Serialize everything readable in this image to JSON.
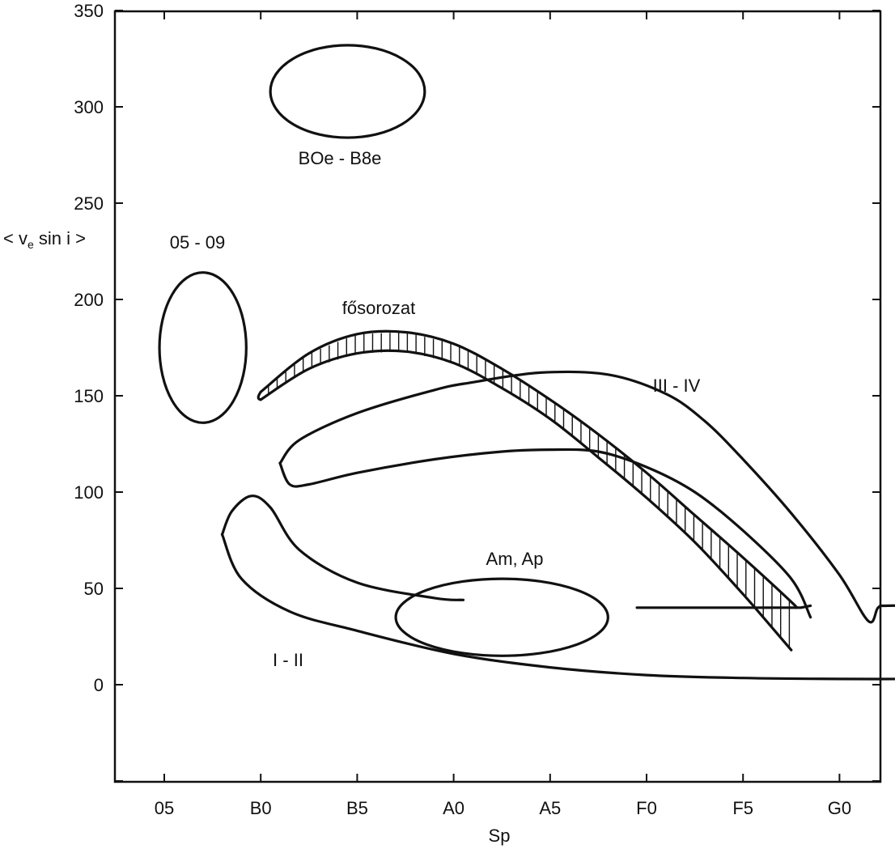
{
  "chart_data": {
    "type": "scatter",
    "xlabel": "Sp",
    "ylabel_main": "< v",
    "ylabel_sub": "e",
    "ylabel_rest": " sin i >",
    "x_ticks": [
      "05",
      "B0",
      "B5",
      "A0",
      "A5",
      "F0",
      "F5",
      "G0"
    ],
    "y_ticks": [
      0,
      50,
      100,
      150,
      200,
      250,
      300,
      350
    ],
    "ylim": [
      -50,
      350
    ],
    "grid": false,
    "regions": [
      {
        "label": "BOe - B8e",
        "shape": "ellipse",
        "center": [
          1.9,
          308
        ],
        "radius": [
          0.8,
          24
        ]
      },
      {
        "label": "05 - 09",
        "shape": "ellipse",
        "center": [
          0.4,
          175
        ],
        "radius": [
          0.45,
          39
        ]
      },
      {
        "label": "fősorozat",
        "shape": "band",
        "upper": [
          [
            1.0,
            152
          ],
          [
            1.5,
            172
          ],
          [
            2.0,
            182
          ],
          [
            2.5,
            183
          ],
          [
            3.0,
            177
          ],
          [
            3.5,
            164
          ],
          [
            4.0,
            148
          ],
          [
            4.5,
            130
          ],
          [
            5.0,
            110
          ],
          [
            5.5,
            88
          ],
          [
            6.0,
            66
          ],
          [
            6.5,
            43
          ],
          [
            6.55,
            40
          ]
        ],
        "lower": [
          [
            1.0,
            148
          ],
          [
            1.5,
            164
          ],
          [
            2.0,
            172
          ],
          [
            2.5,
            173
          ],
          [
            3.0,
            167
          ],
          [
            3.5,
            154
          ],
          [
            4.0,
            138
          ],
          [
            4.5,
            118
          ],
          [
            5.0,
            97
          ],
          [
            5.5,
            74
          ],
          [
            6.0,
            47
          ],
          [
            6.5,
            18
          ]
        ]
      },
      {
        "label": "III - IV",
        "shape": "region",
        "outline": [
          [
            1.2,
            115
          ],
          [
            1.4,
            127
          ],
          [
            2.0,
            141
          ],
          [
            2.8,
            153
          ],
          [
            3.2,
            157
          ],
          [
            3.9,
            162
          ],
          [
            4.6,
            161
          ],
          [
            5.2,
            151
          ],
          [
            5.6,
            137
          ],
          [
            6.0,
            117
          ],
          [
            6.5,
            89
          ],
          [
            7.0,
            57
          ],
          [
            7.3,
            33
          ],
          [
            7.4,
            40
          ],
          [
            7.5,
            41
          ],
          [
            8.0,
            41
          ]
        ],
        "outline2": [
          [
            1.2,
            115
          ],
          [
            1.3,
            104
          ],
          [
            1.5,
            104
          ],
          [
            2.0,
            110
          ],
          [
            2.8,
            117
          ],
          [
            3.5,
            121
          ],
          [
            4.0,
            122
          ],
          [
            4.5,
            121
          ],
          [
            5.0,
            113
          ],
          [
            5.5,
            100
          ],
          [
            6.0,
            80
          ],
          [
            6.5,
            55
          ],
          [
            6.7,
            35
          ]
        ]
      },
      {
        "label": "Am, Ap",
        "shape": "ellipse",
        "center": [
          3.5,
          35
        ],
        "radius": [
          1.1,
          20
        ]
      },
      {
        "label": "I - II",
        "shape": "region",
        "upper": [
          [
            0.6,
            78
          ],
          [
            0.7,
            90
          ],
          [
            0.9,
            98
          ],
          [
            1.1,
            92
          ],
          [
            1.4,
            70
          ],
          [
            2.0,
            53
          ],
          [
            2.8,
            45
          ],
          [
            3.1,
            44
          ]
        ],
        "lower": [
          [
            0.6,
            78
          ],
          [
            0.8,
            55
          ],
          [
            1.3,
            38
          ],
          [
            2.0,
            28
          ],
          [
            3.0,
            16
          ],
          [
            4.0,
            9
          ],
          [
            5.0,
            5
          ],
          [
            6.0,
            3.5
          ],
          [
            7.0,
            3
          ],
          [
            8.0,
            3
          ]
        ],
        "right_line": [
          [
            4.9,
            40
          ],
          [
            5.6,
            40
          ],
          [
            6.6,
            40
          ],
          [
            6.7,
            41
          ]
        ]
      }
    ],
    "region_labels": {
      "b0e": "BOe - B8e",
      "o5": "05 - 09",
      "ms": "fősorozat",
      "iii": "III - IV",
      "am": "Am,  Ap",
      "i": "I - II"
    }
  }
}
